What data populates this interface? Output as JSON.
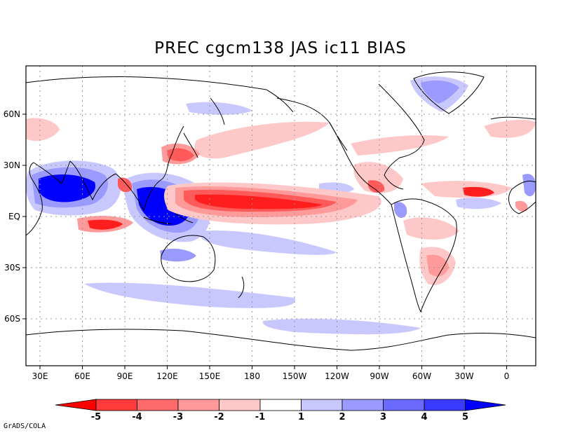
{
  "title": "PREC cgcm138 JAS ic11 BIAS",
  "credit": "GrADS/COLA",
  "lon_labels": [
    "30E",
    "60E",
    "90E",
    "120E",
    "150E",
    "180",
    "150W",
    "120W",
    "90W",
    "60W",
    "30W",
    "0"
  ],
  "lat_labels": [
    "60N",
    "30N",
    "EQ",
    "30S",
    "60S"
  ],
  "colorbar": {
    "labels": [
      "-5",
      "-4",
      "-3",
      "-2",
      "-1",
      "1",
      "2",
      "3",
      "4",
      "5"
    ],
    "colors": [
      "#ff0000",
      "#ff3a3a",
      "#ff6a6a",
      "#ff9a9a",
      "#ffc8c8",
      "#ffffff",
      "#c8c8ff",
      "#9a9aff",
      "#6a6aff",
      "#3a3aff",
      "#0000ff"
    ]
  },
  "field_colors": {
    "red_light": "#ffc8c8",
    "red_mid": "#ff9a9a",
    "red_strong": "#ff5a5a",
    "red_core": "#ff1e1e",
    "blue_light": "#c8c8ff",
    "blue_mid": "#9a9aff",
    "blue_strong": "#5a5aff",
    "blue_core": "#0000ff"
  }
}
